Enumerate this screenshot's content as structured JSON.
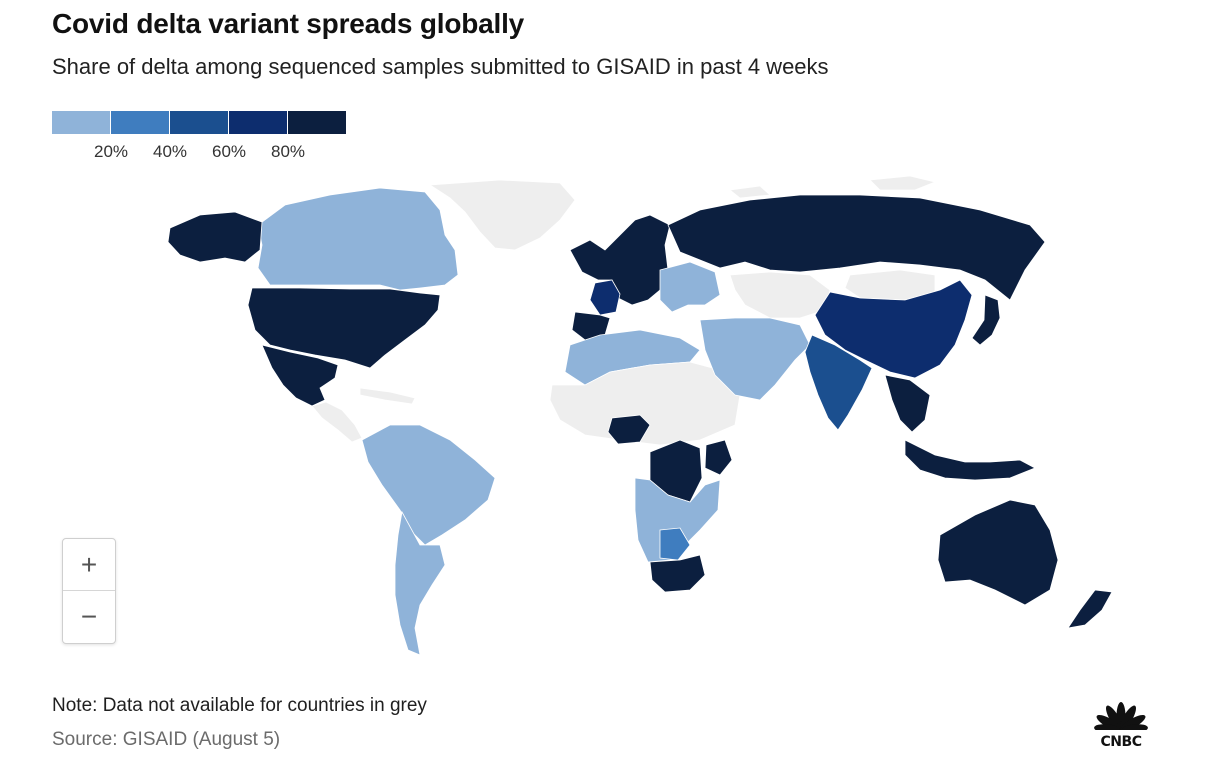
{
  "header": {
    "title": "Covid delta variant spreads globally",
    "subtitle": "Share of delta among sequenced samples submitted to GISAID in past 4 weeks"
  },
  "legend": {
    "colors": [
      "#8fb3d9",
      "#3f7dbf",
      "#1b4f8f",
      "#0d2d6e",
      "#0c1f3f"
    ],
    "ticks": [
      "20%",
      "40%",
      "60%",
      "80%"
    ]
  },
  "map": {
    "no_data_color": "#eeeeee",
    "ocean_color": "#ffffff",
    "regions": [
      {
        "name": "Canada",
        "bin": 0
      },
      {
        "name": "USA",
        "bin": 4
      },
      {
        "name": "Alaska",
        "bin": 4
      },
      {
        "name": "Mexico",
        "bin": 4
      },
      {
        "name": "Greenland",
        "bin": -1
      },
      {
        "name": "Central America & Caribbean",
        "bin": -1
      },
      {
        "name": "South America north",
        "bin": 0
      },
      {
        "name": "South America south",
        "bin": 0
      },
      {
        "name": "Western Europe",
        "bin": 4
      },
      {
        "name": "France",
        "bin": 3
      },
      {
        "name": "Iberia",
        "bin": 4
      },
      {
        "name": "Eastern Europe & Balkans",
        "bin": 0
      },
      {
        "name": "Russia",
        "bin": 4
      },
      {
        "name": "Central Asia",
        "bin": -1
      },
      {
        "name": "North Africa",
        "bin": 0
      },
      {
        "name": "Sahara & Sahel",
        "bin": -1
      },
      {
        "name": "Nigeria",
        "bin": 4
      },
      {
        "name": "DR Congo",
        "bin": 4
      },
      {
        "name": "Kenya",
        "bin": 4
      },
      {
        "name": "Southern Africa",
        "bin": 0
      },
      {
        "name": "Botswana",
        "bin": 1
      },
      {
        "name": "South Africa",
        "bin": 4
      },
      {
        "name": "Middle East",
        "bin": 0
      },
      {
        "name": "India",
        "bin": 2
      },
      {
        "name": "China",
        "bin": 3
      },
      {
        "name": "Mongolia",
        "bin": -1
      },
      {
        "name": "Japan",
        "bin": 4
      },
      {
        "name": "Southeast Asia",
        "bin": 4
      },
      {
        "name": "Indonesia",
        "bin": 4
      },
      {
        "name": "Australia",
        "bin": 4
      },
      {
        "name": "New Zealand",
        "bin": 4
      },
      {
        "name": "Antarctic & Arctic islands",
        "bin": -1
      }
    ]
  },
  "controls": {
    "zoom_in": "+",
    "zoom_out": "−"
  },
  "footer": {
    "note": "Note: Data not available for countries in grey",
    "source": "Source: GISAID (August 5)"
  },
  "logo": {
    "text": "CNBC"
  }
}
